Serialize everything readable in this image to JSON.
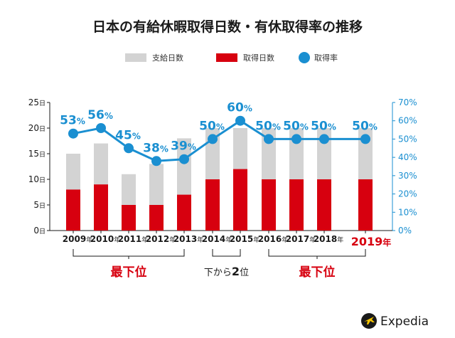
{
  "chart_data": {
    "type": "bar",
    "title": "日本の有給休暇取得日数・有休取得率の推移",
    "categories": [
      "2009",
      "2010",
      "2011",
      "2012",
      "2013",
      "2014",
      "2015",
      "2016",
      "2017",
      "2018",
      "2019"
    ],
    "category_unit": "年",
    "highlight_category": "2019",
    "series": [
      {
        "name": "支給日数",
        "type": "bar",
        "axis": "left",
        "color": "#d3d3d3",
        "values": [
          15,
          17,
          11,
          13,
          18,
          20,
          20,
          20,
          20,
          20,
          20
        ]
      },
      {
        "name": "取得日数",
        "type": "bar",
        "axis": "left",
        "color": "#d7000f",
        "values": [
          8,
          9,
          5,
          5,
          7,
          10,
          12,
          10,
          10,
          10,
          10
        ]
      },
      {
        "name": "取得率",
        "type": "line",
        "axis": "right",
        "color": "#1a8fd1",
        "values": [
          53,
          56,
          45,
          38,
          39,
          50,
          60,
          50,
          50,
          50,
          50
        ]
      }
    ],
    "y_left": {
      "ticks": [
        0,
        5,
        10,
        15,
        20,
        25
      ],
      "unit": "日",
      "range": [
        0,
        25
      ]
    },
    "y_right": {
      "ticks": [
        "0%",
        "10%",
        "20%",
        "30%",
        "40%",
        "50%",
        "60%",
        "70%"
      ],
      "range": [
        0,
        70
      ]
    },
    "legend_position": "top",
    "annotations": [
      {
        "text": "最下位",
        "from": "2009",
        "to": "2013"
      },
      {
        "text_prefix": "下から",
        "text_num": "2",
        "text_suffix": "位",
        "from": "2014",
        "to": "2015"
      },
      {
        "text": "最下位",
        "from": "2016",
        "to": "2019"
      }
    ]
  },
  "brand": {
    "name": "Expedia"
  }
}
